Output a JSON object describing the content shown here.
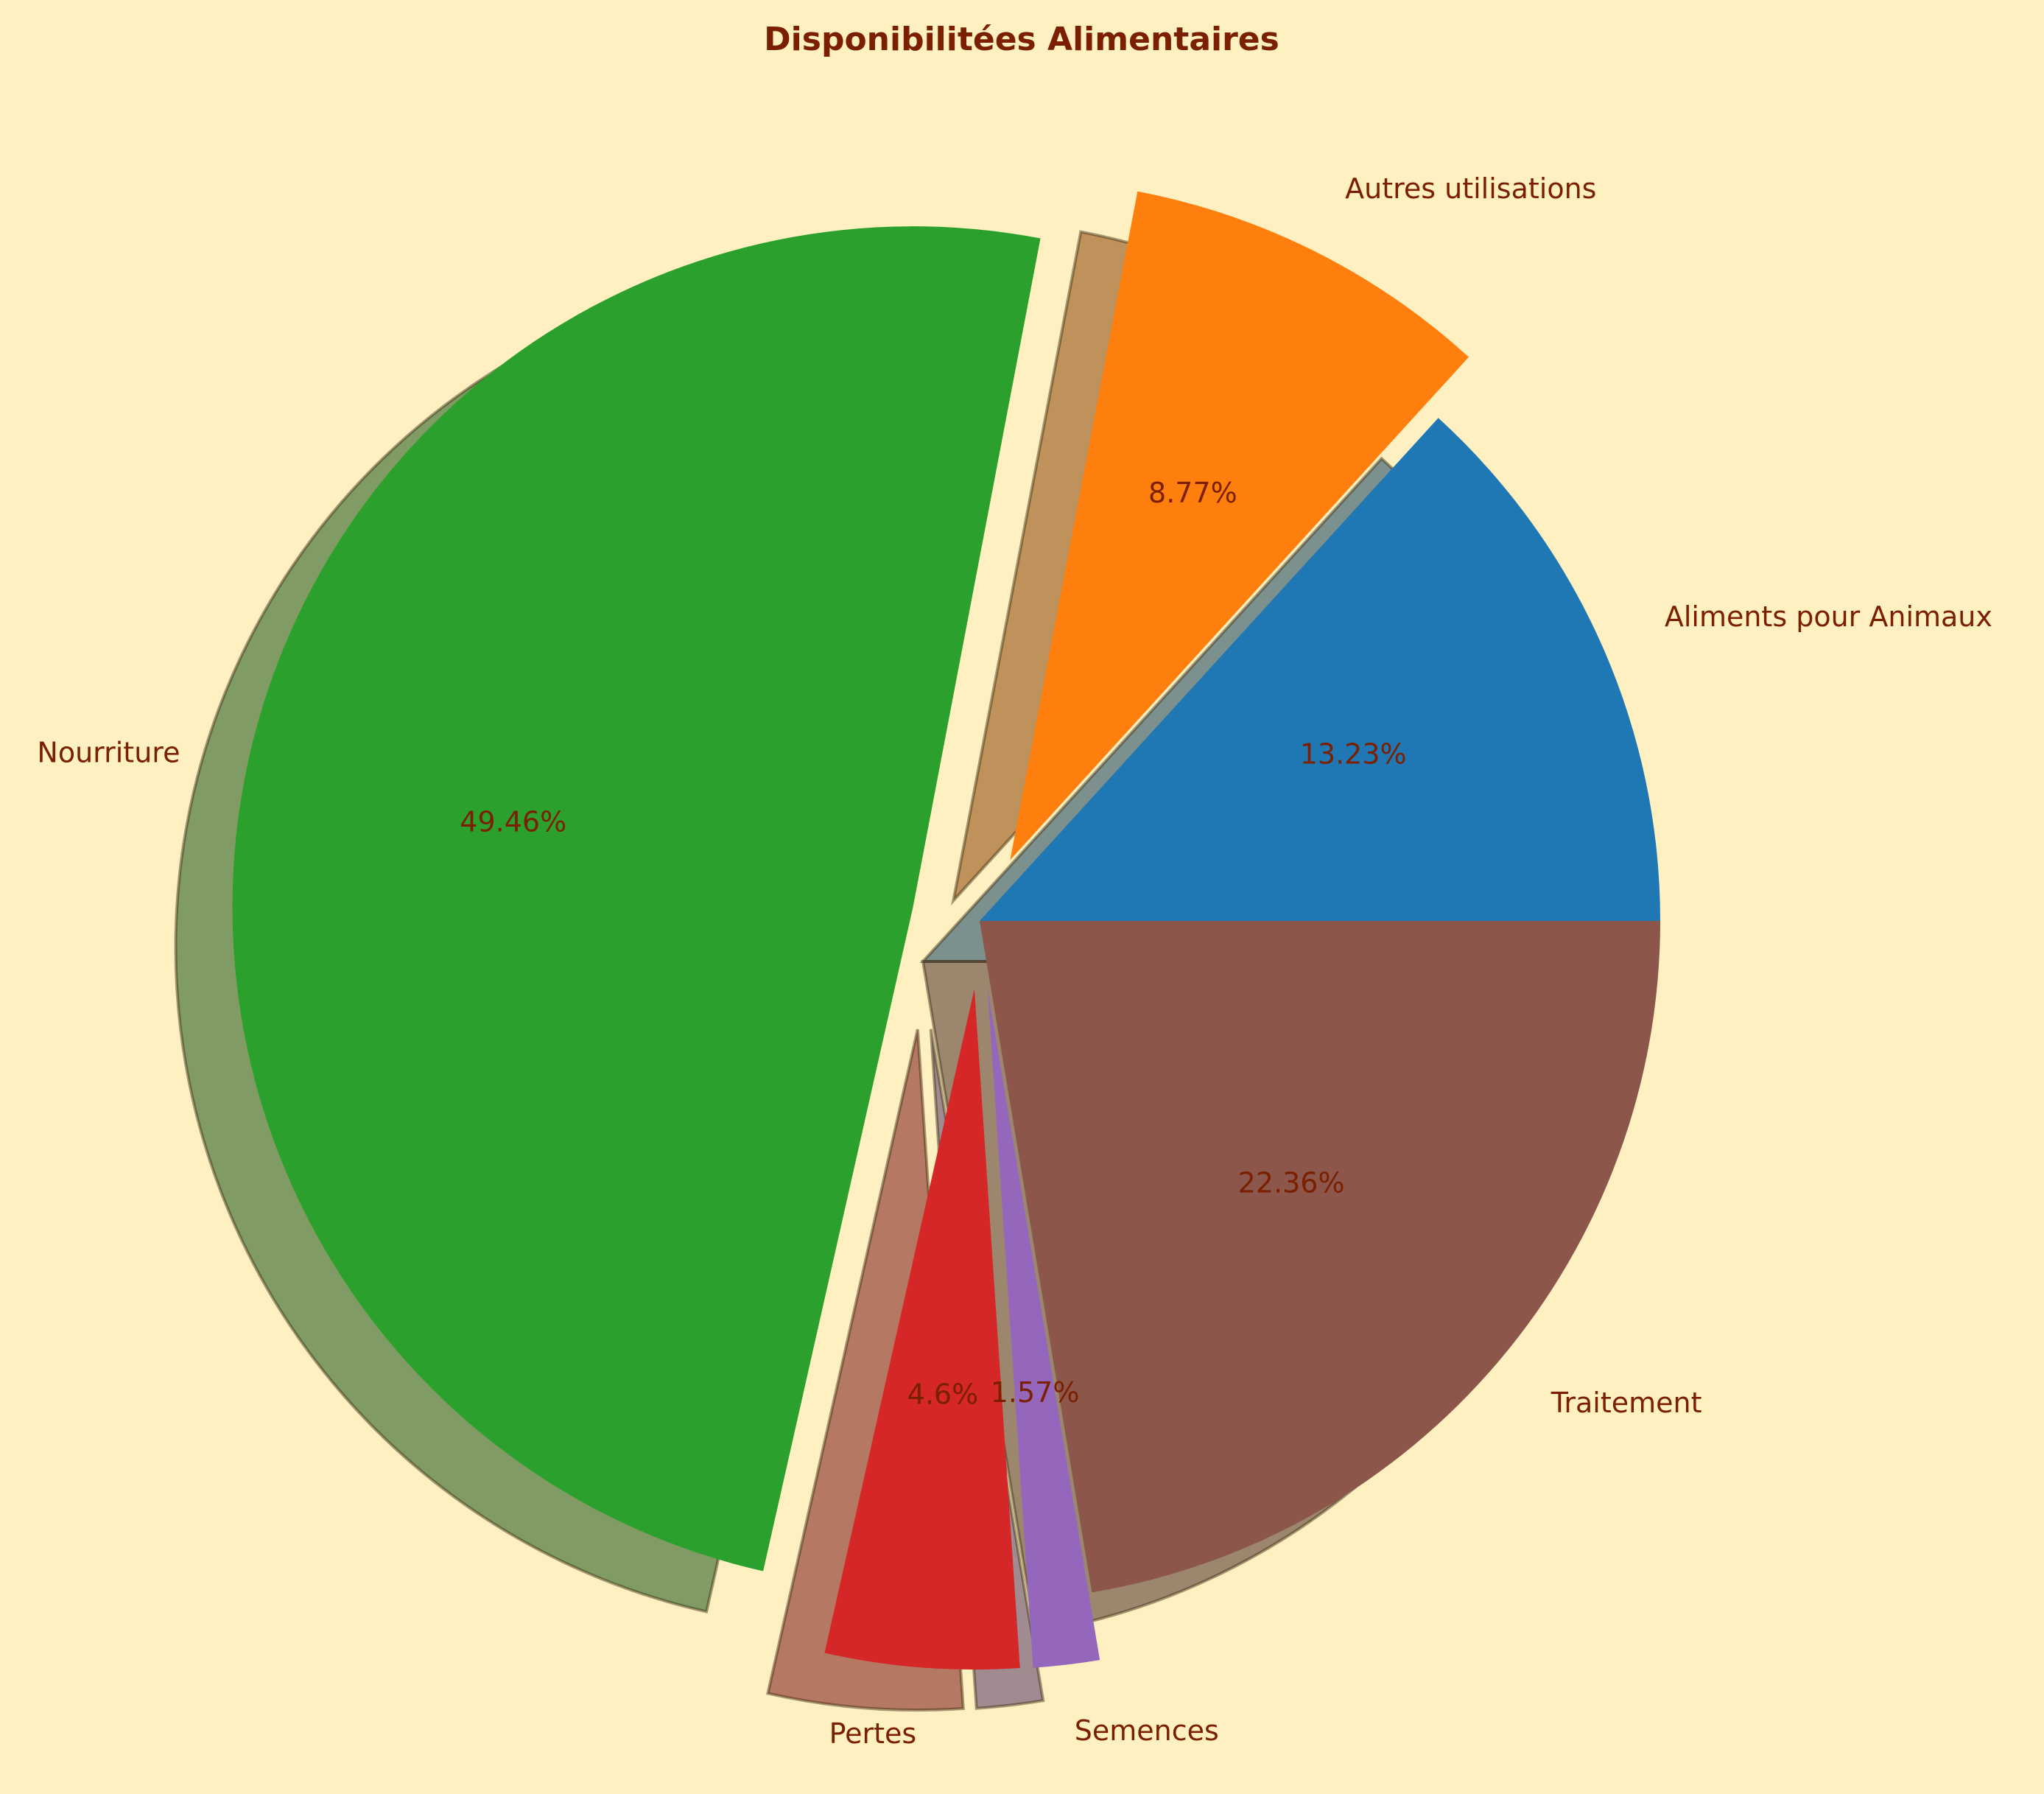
{
  "chart_data": {
    "type": "pie",
    "title": "Disponibilitées Alimentaires",
    "start_angle_deg": 0,
    "direction": "counterclockwise",
    "shadow": true,
    "background_color": "#fff0c1",
    "text_color": "#7a1f00",
    "slices": [
      {
        "label": "Aliments pour Animaux",
        "value": 13.23,
        "pct_text": "13.23%",
        "color": "#1f77b4",
        "exploded": false
      },
      {
        "label": "Autres utilisations",
        "value": 8.77,
        "pct_text": "8.77%",
        "color": "#ff7f0e",
        "exploded": true
      },
      {
        "label": "Nourriture",
        "value": 49.46,
        "pct_text": "49.46%",
        "color": "#2ca02c",
        "exploded": true
      },
      {
        "label": "Pertes",
        "value": 4.6,
        "pct_text": "4.6%",
        "color": "#d62728",
        "exploded": true
      },
      {
        "label": "Semences",
        "value": 1.57,
        "pct_text": "1.57%",
        "color": "#9467bd",
        "exploded": true
      },
      {
        "label": "Traitement",
        "value": 22.36,
        "pct_text": "22.36%",
        "color": "#8c564b",
        "exploded": false
      }
    ]
  }
}
